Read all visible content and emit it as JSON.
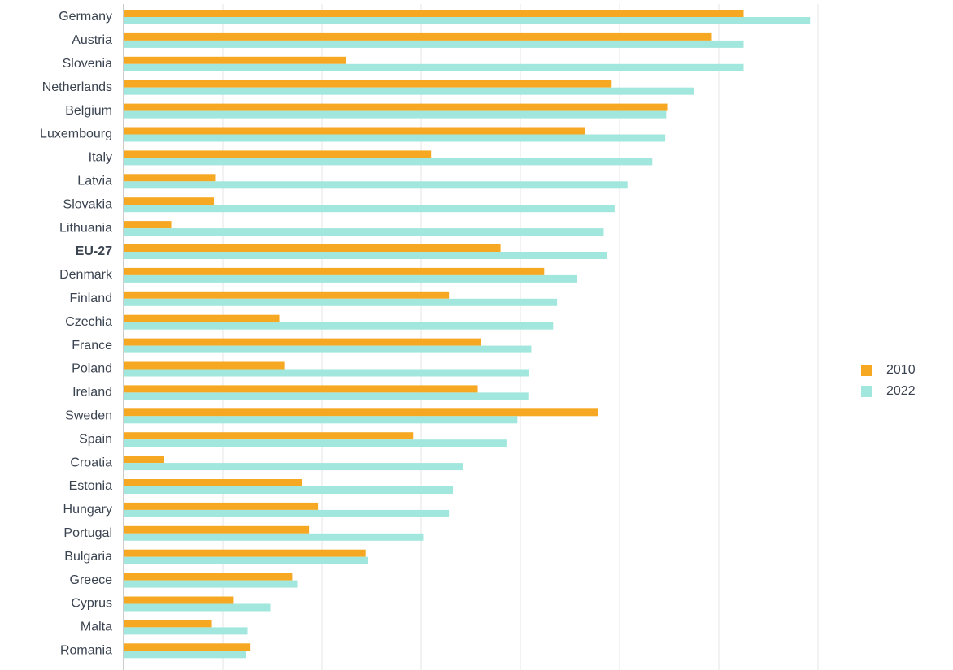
{
  "chart_data": {
    "type": "hbar",
    "categories": [
      "Germany",
      "Austria",
      "Slovenia",
      "Netherlands",
      "Belgium",
      "Luxembourg",
      "Italy",
      "Latvia",
      "Slovakia",
      "Lithuania",
      "EU-27",
      "Denmark",
      "Finland",
      "Czechia",
      "France",
      "Poland",
      "Ireland",
      "Sweden",
      "Spain",
      "Croatia",
      "Estonia",
      "Hungary",
      "Portugal",
      "Bulgaria",
      "Greece",
      "Cyprus",
      "Malta",
      "Romania"
    ],
    "emphasized_categories": [
      10
    ],
    "series": [
      {
        "name": "2010",
        "color": "#f7a823",
        "values": [
          62.5,
          59.3,
          22.4,
          49.2,
          54.8,
          46.5,
          31.0,
          9.3,
          9.1,
          4.8,
          38.0,
          42.4,
          32.8,
          15.7,
          36.0,
          16.2,
          35.7,
          47.8,
          29.2,
          4.1,
          18.0,
          19.6,
          18.7,
          24.4,
          17.0,
          11.1,
          8.9,
          12.8
        ]
      },
      {
        "name": "2022",
        "color": "#a2e7dd",
        "values": [
          69.2,
          62.5,
          62.5,
          57.5,
          54.7,
          54.6,
          53.3,
          50.8,
          49.5,
          48.4,
          48.7,
          45.7,
          43.7,
          43.3,
          41.1,
          40.9,
          40.8,
          39.7,
          38.6,
          34.2,
          33.2,
          32.8,
          30.2,
          24.6,
          17.5,
          14.8,
          12.5,
          12.3
        ]
      }
    ],
    "xlim": [
      0,
      70
    ],
    "xticks": [
      0,
      10,
      20,
      30,
      40,
      50,
      60,
      70
    ],
    "grid": true,
    "legend": "right"
  }
}
